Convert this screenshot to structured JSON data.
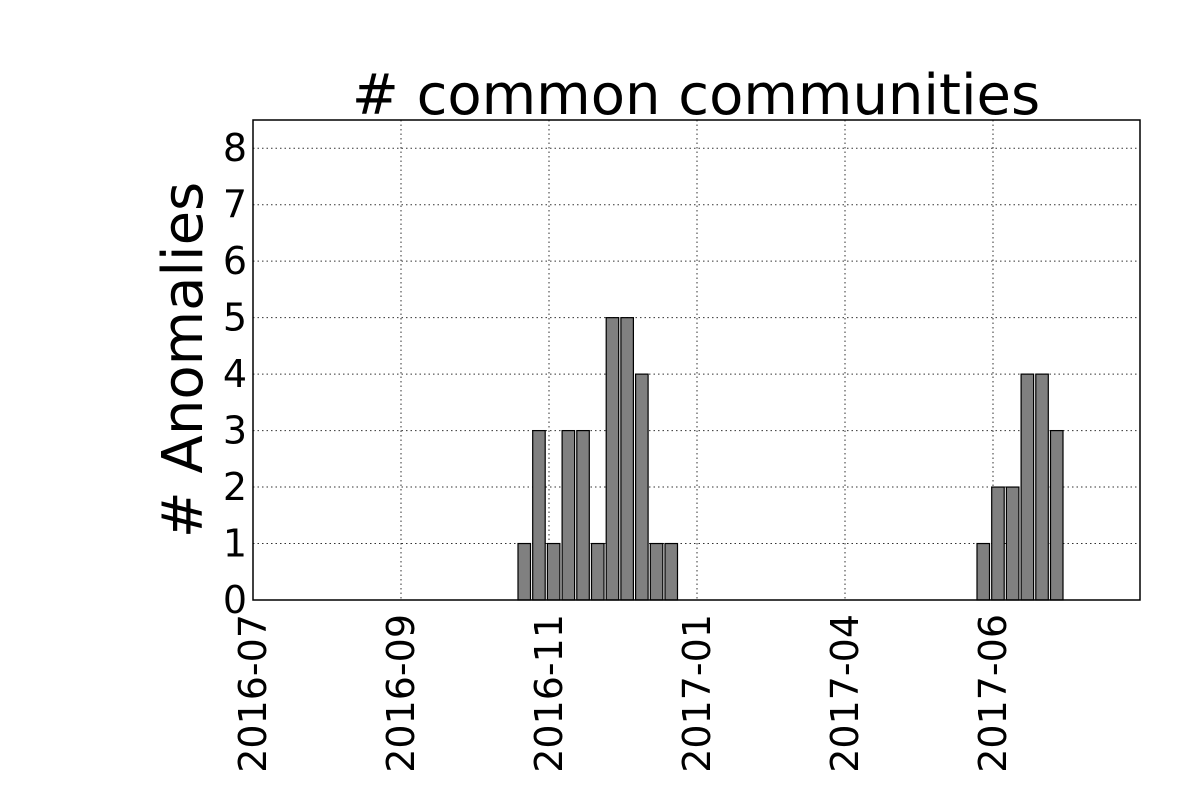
{
  "chart_data": {
    "type": "bar",
    "title": "# common communities",
    "xlabel": "",
    "ylabel": "# Anomalies",
    "ylim": [
      0,
      8.5
    ],
    "y_ticks": [
      "0",
      "1",
      "2",
      "3",
      "4",
      "5",
      "6",
      "7",
      "8"
    ],
    "x_ticks": [
      "2016-07",
      "2016-09",
      "2016-11",
      "2017-01",
      "2017-04",
      "2017-06"
    ],
    "grid": true,
    "bar_color": "#808080",
    "series": [
      {
        "values": [
          1,
          3,
          1,
          3,
          3,
          1,
          5,
          5,
          4,
          1,
          1,
          1,
          2,
          2,
          4,
          4,
          3
        ]
      }
    ]
  }
}
